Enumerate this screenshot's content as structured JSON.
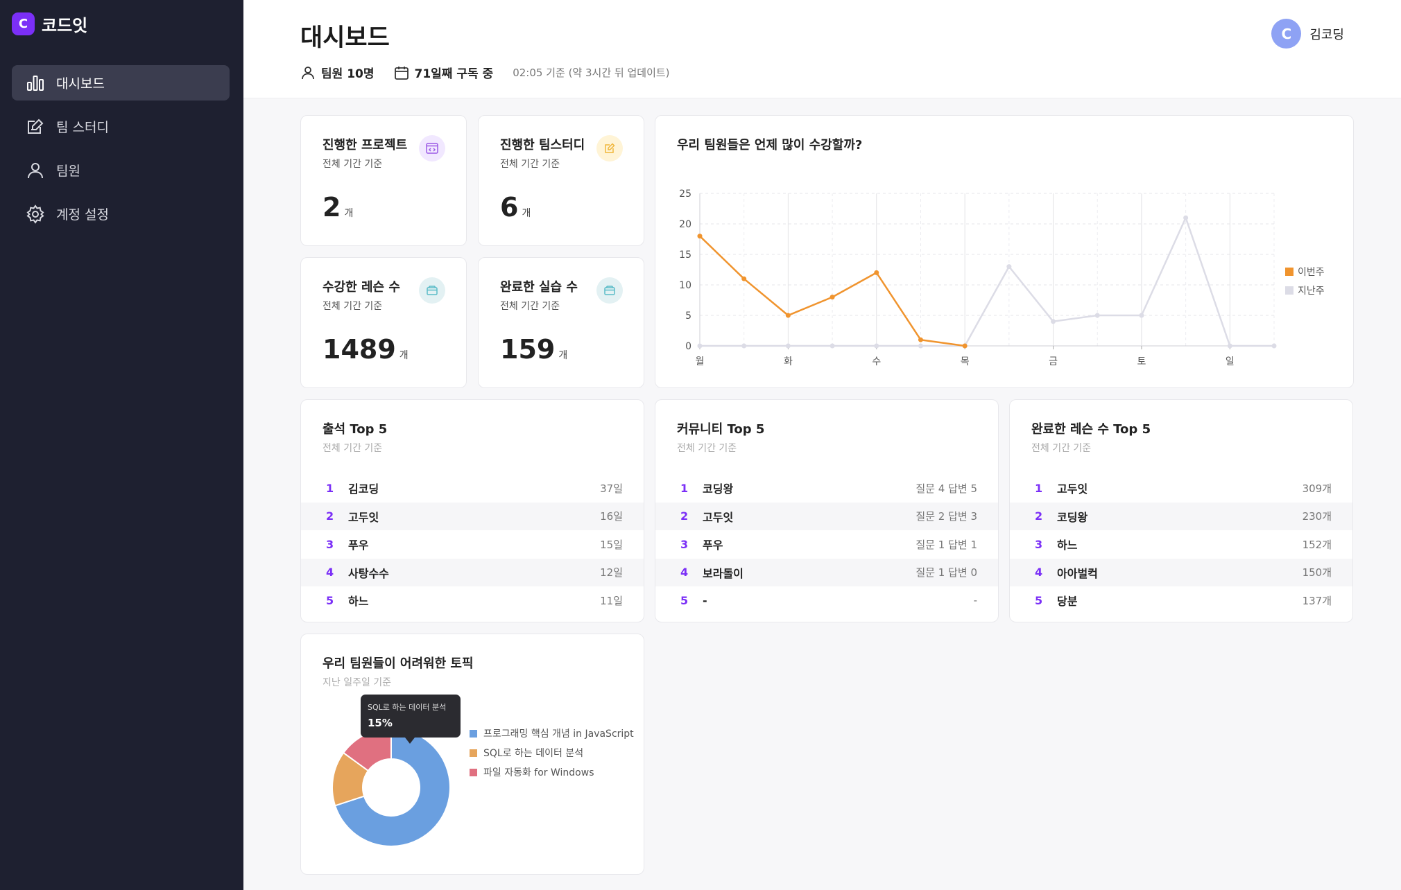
{
  "app": {
    "brand": "코드잇",
    "logo_glyph": "C"
  },
  "sidebar": {
    "items": [
      {
        "label": "대시보드",
        "icon": "bar-chart-icon",
        "active": true
      },
      {
        "label": "팀 스터디",
        "icon": "edit-note-icon",
        "active": false
      },
      {
        "label": "팀원",
        "icon": "person-icon",
        "active": false
      },
      {
        "label": "계정 설정",
        "icon": "gear-icon",
        "active": false
      }
    ]
  },
  "header": {
    "title": "대시보드",
    "members": "팀원 10명",
    "subscription": "71일째 구독 중",
    "updated_note": "02:05 기준 (약 3시간 뒤 업데이트)",
    "user_name": "김코딩",
    "avatar_glyph": "C"
  },
  "stats": [
    {
      "title": "진행한 프로젝트",
      "sub": "전체 기간 기준",
      "value": "2",
      "unit": "개",
      "icon": "code-window-icon",
      "badge_bg": "#f1e8ff",
      "icon_color": "#9b59e6"
    },
    {
      "title": "진행한 팀스터디",
      "sub": "전체 기간 기준",
      "value": "6",
      "unit": "개",
      "icon": "edit-icon",
      "badge_bg": "#fff4d6",
      "icon_color": "#f0b63a"
    },
    {
      "title": "수강한 레슨 수",
      "sub": "전체 기간 기준",
      "value": "1489",
      "unit": "개",
      "icon": "box-icon",
      "badge_bg": "#e3f1f3",
      "icon_color": "#5bbcc8"
    },
    {
      "title": "완료한 실습 수",
      "sub": "전체 기간 기준",
      "value": "159",
      "unit": "개",
      "icon": "box-icon",
      "badge_bg": "#e3f1f3",
      "icon_color": "#5bbcc8"
    }
  ],
  "line_card": {
    "title": "우리 팀원들은 언제 많이 수강할까?"
  },
  "chart_data": {
    "type": "line",
    "title": "우리 팀원들은 언제 많이 수강할까?",
    "x_tick_labels": [
      "월",
      "화",
      "수",
      "목",
      "금",
      "토",
      "일"
    ],
    "points_per_day": 2,
    "ylim": [
      0,
      25
    ],
    "yticks": [
      0,
      5,
      10,
      15,
      20,
      25
    ],
    "grid": true,
    "legend_position": "right",
    "series": [
      {
        "name": "이번주",
        "color": "#f0942e",
        "values": [
          18,
          11,
          5,
          8,
          12,
          1,
          0
        ]
      },
      {
        "name": "지난주",
        "color": "#dcdce6",
        "values": [
          0,
          0,
          0,
          0,
          0,
          0,
          0,
          13,
          4,
          5,
          5,
          21,
          0,
          0
        ]
      }
    ]
  },
  "top_lists": [
    {
      "title": "출석 Top 5",
      "sub": "전체 기간 기준",
      "rows": [
        {
          "rank": "1",
          "name": "김코딩",
          "value": "37일"
        },
        {
          "rank": "2",
          "name": "고두잇",
          "value": "16일"
        },
        {
          "rank": "3",
          "name": "푸우",
          "value": "15일"
        },
        {
          "rank": "4",
          "name": "사탕수수",
          "value": "12일"
        },
        {
          "rank": "5",
          "name": "하느",
          "value": "11일"
        }
      ]
    },
    {
      "title": "커뮤니티 Top 5",
      "sub": "전체 기간 기준",
      "rows": [
        {
          "rank": "1",
          "name": "코딩왕",
          "value": "질문 4 답변 5"
        },
        {
          "rank": "2",
          "name": "고두잇",
          "value": "질문 2 답변 3"
        },
        {
          "rank": "3",
          "name": "푸우",
          "value": "질문 1 답변 1"
        },
        {
          "rank": "4",
          "name": "보라돌이",
          "value": "질문 1 답변 0"
        },
        {
          "rank": "5",
          "name": "-",
          "value": "-"
        }
      ]
    },
    {
      "title": "완료한 레슨 수 Top 5",
      "sub": "전체 기간 기준",
      "rows": [
        {
          "rank": "1",
          "name": "고두잇",
          "value": "309개"
        },
        {
          "rank": "2",
          "name": "코딩왕",
          "value": "230개"
        },
        {
          "rank": "3",
          "name": "하느",
          "value": "152개"
        },
        {
          "rank": "4",
          "name": "아아벌컥",
          "value": "150개"
        },
        {
          "rank": "5",
          "name": "당분",
          "value": "137개"
        }
      ]
    }
  ],
  "topic_card": {
    "title": "우리 팀원들이 어려워한 토픽",
    "sub": "지난 일주일 기준",
    "tooltip_label": "SQL로 하는 데이터 분석",
    "tooltip_value": "15%"
  },
  "donut_data": {
    "type": "pie",
    "slices": [
      {
        "label": "프로그래밍 핵심 개념 in JavaScript",
        "value": 70,
        "color": "#6a9fe0"
      },
      {
        "label": "SQL로 하는 데이터 분석",
        "value": 15,
        "color": "#e6a55c"
      },
      {
        "label": "파일 자동화 for Windows",
        "value": 15,
        "color": "#e07080"
      }
    ]
  }
}
